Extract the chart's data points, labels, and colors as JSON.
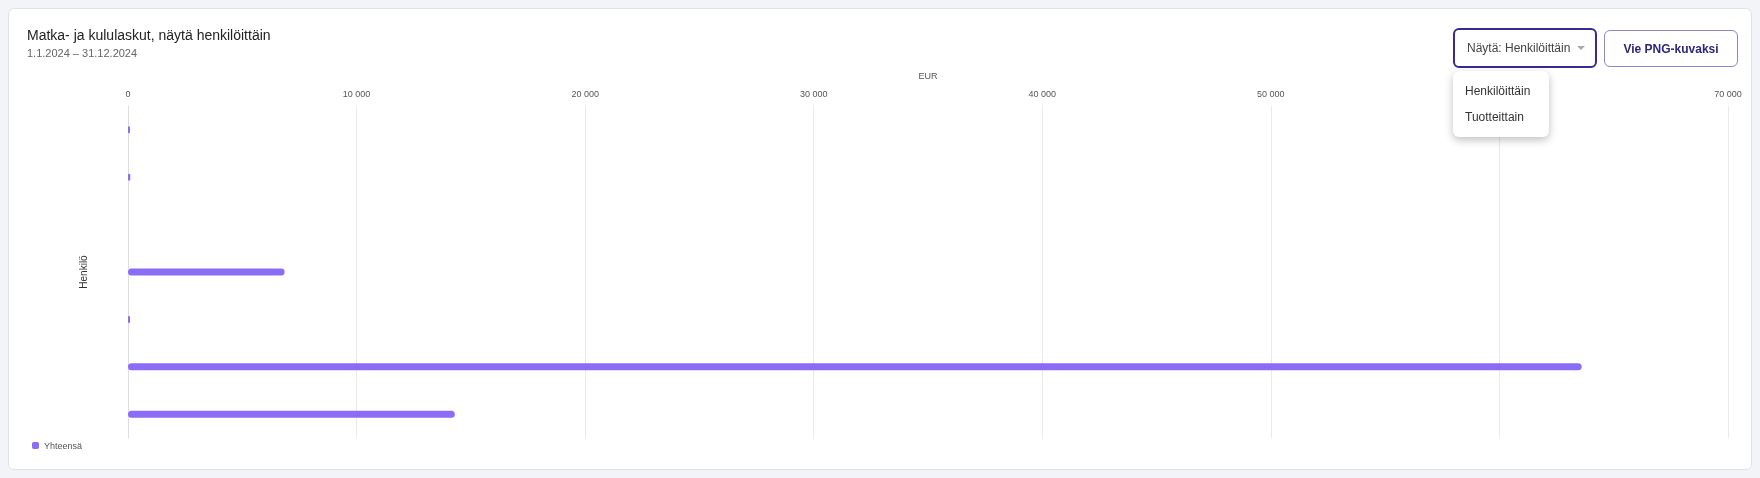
{
  "chart_data": {
    "type": "bar",
    "orientation": "horizontal",
    "title": "Matka- ja kululaskut, näytä henkilöittäin",
    "subtitle": "1.1.2024 – 31.12.2024",
    "xlabel": "EUR",
    "ylabel": "Henkilö",
    "categories": [
      null,
      null,
      null,
      null,
      null,
      null,
      null
    ],
    "series": [
      {
        "name": "Yhteensä",
        "color": "#8b6cf6",
        "values": [
          20,
          100,
          null,
          6850,
          20,
          63600,
          14300
        ]
      }
    ],
    "xlim": [
      0,
      70000
    ],
    "xticks": [
      0,
      {
        "value": 10000,
        "label": "10 000"
      },
      {
        "value": 20000,
        "label": "20 000"
      },
      {
        "value": 30000,
        "label": "30 000"
      },
      {
        "value": 40000,
        "label": "40 000"
      },
      {
        "value": 50000,
        "label": "50 000"
      },
      {
        "value": 60000,
        "label": null
      },
      {
        "value": 70000,
        "label": "70 000"
      }
    ],
    "grid": "x",
    "legend": "bottom left",
    "annotations": [
      "Näytä: Henkilöittäin",
      "Vie PNG-kuvaksi",
      "Henkilöittäin",
      "Tuotteittain"
    ]
  }
}
